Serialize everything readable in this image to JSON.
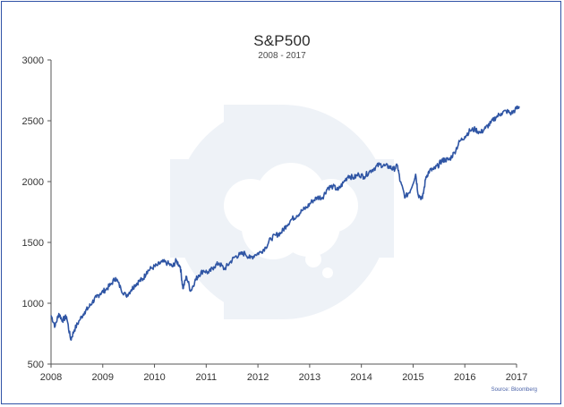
{
  "chart_data": {
    "type": "line",
    "title": "S&P500",
    "subtitle": "2008 - 2017",
    "source": "Source: Bloomberg",
    "xlabel": "",
    "ylabel": "",
    "xlim": [
      2008,
      2017
    ],
    "ylim": [
      500,
      3000
    ],
    "x_ticks": [
      "2008",
      "2009",
      "2010",
      "2011",
      "2012",
      "2013",
      "2014",
      "2015",
      "2016",
      "2017"
    ],
    "y_ticks": [
      "500",
      "1000",
      "1500",
      "2000",
      "2500",
      "3000"
    ],
    "grid": false,
    "legend": "none",
    "line_color": "#2f55a4",
    "series": [
      {
        "x": [
          2008.0,
          2008.08,
          2008.15,
          2008.22,
          2008.3,
          2008.38,
          2008.45,
          2008.55,
          2008.65,
          2008.72,
          2008.8,
          2008.88,
          2008.95,
          2009.05,
          2009.15,
          2009.25,
          2009.35,
          2009.45,
          2009.55,
          2009.62,
          2009.7,
          2009.78,
          2009.85,
          2009.95,
          2010.05,
          2010.15,
          2010.25,
          2010.35,
          2010.42,
          2010.5,
          2010.55,
          2010.62,
          2010.7,
          2010.78,
          2010.85,
          2010.95,
          2011.05,
          2011.15,
          2011.25,
          2011.35,
          2011.45,
          2011.55,
          2011.65,
          2011.75,
          2011.85,
          2011.95,
          2012.05,
          2012.15,
          2012.25,
          2012.35,
          2012.45,
          2012.55,
          2012.65,
          2012.75,
          2012.85,
          2012.95,
          2013.05,
          2013.15,
          2013.25,
          2013.35,
          2013.45,
          2013.55,
          2013.65,
          2013.75,
          2013.85,
          2013.95,
          2014.05,
          2014.15,
          2014.25,
          2014.35,
          2014.45,
          2014.55,
          2014.62,
          2014.7,
          2014.75,
          2014.85,
          2014.95,
          2015.05,
          2015.1,
          2015.18,
          2015.25,
          2015.32,
          2015.4,
          2015.48,
          2015.55,
          2015.62,
          2015.7,
          2015.8,
          2015.9,
          2016.0,
          2016.1,
          2016.2,
          2016.3,
          2016.4,
          2016.5,
          2016.6,
          2016.7,
          2016.8,
          2016.9,
          2017.0,
          2017.05
        ],
        "y": [
          900,
          810,
          915,
          860,
          890,
          700,
          780,
          860,
          930,
          960,
          1010,
          1050,
          1080,
          1110,
          1150,
          1210,
          1120,
          1060,
          1110,
          1150,
          1180,
          1200,
          1260,
          1290,
          1310,
          1340,
          1330,
          1300,
          1350,
          1300,
          1120,
          1220,
          1100,
          1180,
          1230,
          1270,
          1250,
          1300,
          1330,
          1280,
          1330,
          1380,
          1400,
          1410,
          1370,
          1400,
          1420,
          1460,
          1530,
          1560,
          1580,
          1640,
          1690,
          1720,
          1760,
          1790,
          1840,
          1870,
          1870,
          1950,
          1960,
          1930,
          1990,
          2050,
          2030,
          2060,
          2040,
          2080,
          2110,
          2140,
          2130,
          2120,
          2100,
          2130,
          2000,
          1870,
          1930,
          2060,
          1890,
          1860,
          2040,
          2090,
          2100,
          2130,
          2170,
          2180,
          2180,
          2240,
          2330,
          2370,
          2420,
          2430,
          2400,
          2440,
          2480,
          2530,
          2560,
          2580,
          2560,
          2600,
          2620
        ]
      }
    ]
  }
}
